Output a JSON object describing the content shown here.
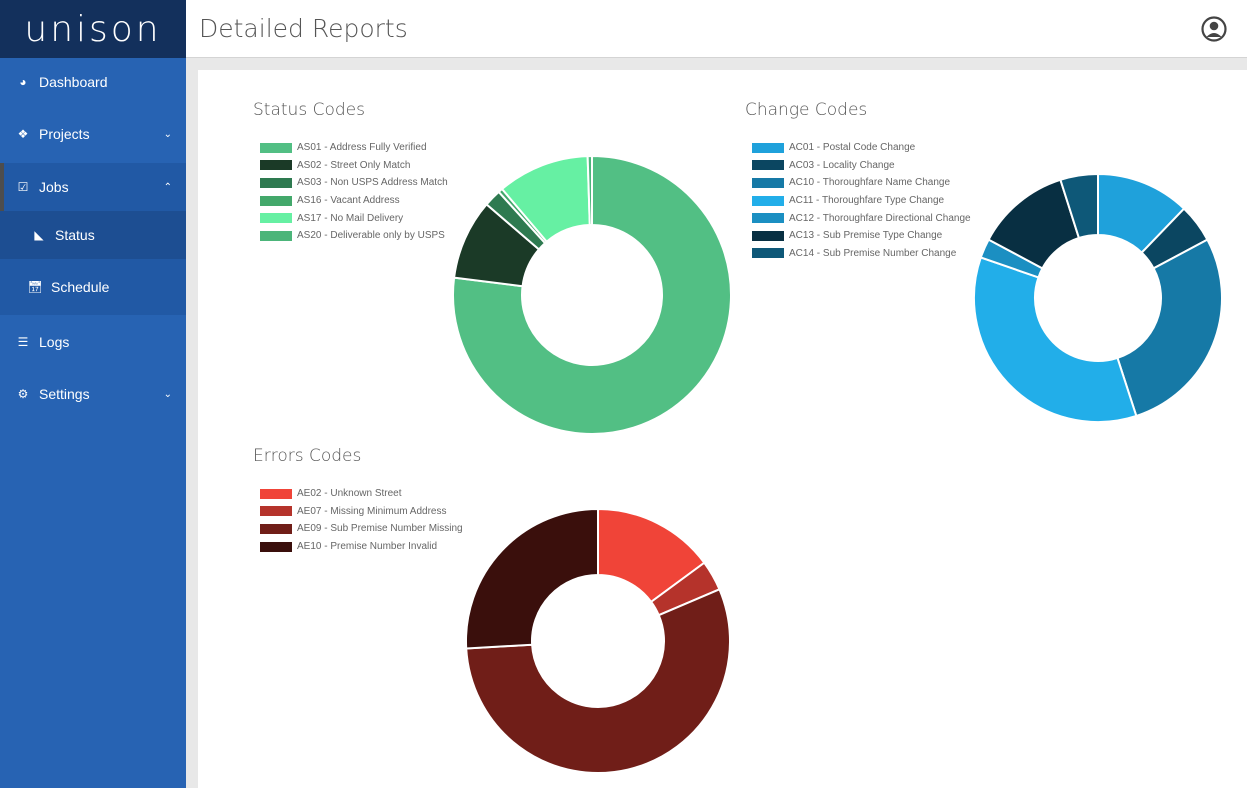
{
  "app": {
    "logo": "UNISON"
  },
  "header": {
    "title": "Detailed Reports",
    "user_icon": "user-circle-icon"
  },
  "sidebar": {
    "items": [
      {
        "label": "Dashboard",
        "icon": "tachometer-icon"
      },
      {
        "label": "Projects",
        "icon": "cubes-icon"
      },
      {
        "label": "Jobs",
        "icon": "check-square-icon"
      },
      {
        "label": "Status",
        "icon": "rss-icon"
      },
      {
        "label": "Schedule",
        "icon": "calendar-check-icon"
      },
      {
        "label": "Logs",
        "icon": "list-icon"
      },
      {
        "label": "Settings",
        "icon": "gear-icon"
      }
    ]
  },
  "chart_data": [
    {
      "type": "pie",
      "title": "Status Codes",
      "legend": "top-left",
      "categories": [
        "AS01 - Address Fully Verified",
        "AS02 - Street Only Match",
        "AS03 - Non USPS Address Match",
        "AS16 - Vacant Address",
        "AS17 - No Mail Delivery",
        "AS20 - Deliverable only by USPS"
      ],
      "values": [
        77,
        9.3,
        2,
        0.5,
        10.7,
        0.5
      ],
      "colors": [
        "#52bf84",
        "#1b3a27",
        "#2e7a50",
        "#43a86b",
        "#66f0a3",
        "#4cb57a"
      ]
    },
    {
      "type": "pie",
      "title": "Change Codes",
      "legend": "top-left",
      "categories": [
        "AC01 - Postal Code Change",
        "AC03 - Locality Change",
        "AC10 - Thoroughfare Name Change",
        "AC11 - Thoroughfare Type Change",
        "AC12 - Thoroughfare Directional Change",
        "AC13 - Sub Premise Type Change",
        "AC14 - Sub Premise Number Change"
      ],
      "values": [
        12.2,
        5,
        27.8,
        35.3,
        2.5,
        12.3,
        4.9
      ],
      "colors": [
        "#1fa1db",
        "#0b4661",
        "#1679a6",
        "#22aee9",
        "#1b8fc2",
        "#082f42",
        "#0e5878"
      ]
    },
    {
      "type": "pie",
      "title": "Errors Codes",
      "legend": "top-left",
      "categories": [
        "AE02 - Unknown Street",
        "AE07 - Missing Minimum Address",
        "AE09 - Sub Premise Number Missing",
        "AE10 - Premise Number Invalid"
      ],
      "values": [
        14.9,
        3.7,
        55.5,
        25.9
      ],
      "colors": [
        "#f04438",
        "#b5332b",
        "#701e18",
        "#3a0f0c"
      ]
    }
  ]
}
